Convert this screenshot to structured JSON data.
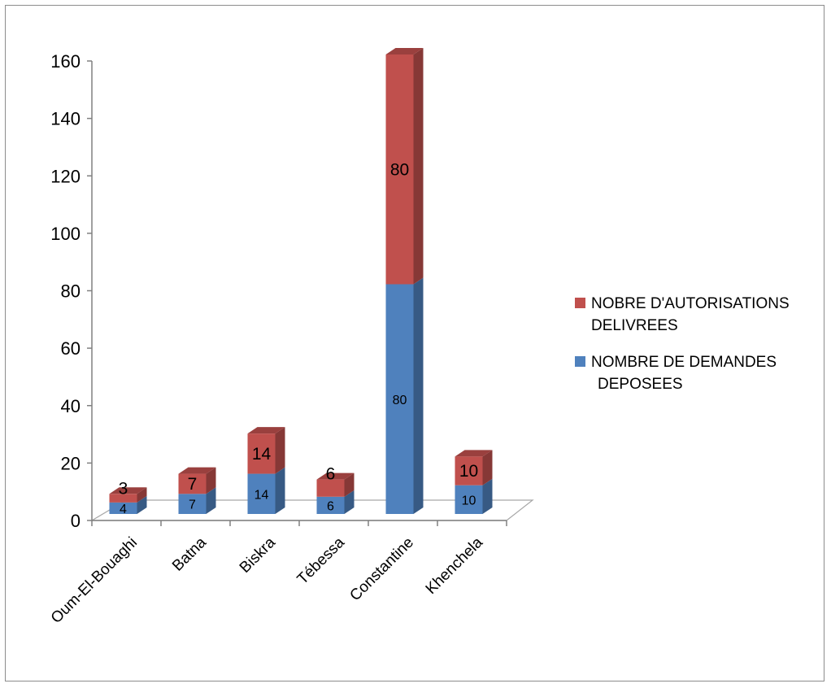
{
  "chart_data": {
    "type": "bar",
    "stacked": true,
    "three_d": true,
    "categories": [
      "Oum-El-Bouaghi",
      "Batna",
      "Biskra",
      "Tébessa",
      "Constantine",
      "Khenchela"
    ],
    "series": [
      {
        "name": "NOMBRE DE DEMANDES DEPOSEES",
        "values": [
          4,
          7,
          14,
          6,
          80,
          10
        ],
        "color": "#4f81bd"
      },
      {
        "name": "NOBRE D'AUTORISATIONS DELIVREES",
        "values": [
          3,
          7,
          14,
          6,
          80,
          10
        ],
        "color": "#c0504d"
      }
    ],
    "yticks": [
      0,
      20,
      40,
      60,
      80,
      100,
      120,
      140,
      160
    ],
    "ylim": [
      0,
      160
    ],
    "legend_position": "right",
    "grid": false
  },
  "legend": {
    "items": [
      {
        "line1": "NOBRE D'AUTORISATIONS",
        "line2": "DELIVREES",
        "color": "#c0504d"
      },
      {
        "line1": "NOMBRE DE DEMANDES",
        "line2": "DEPOSEES",
        "color": "#4f81bd"
      }
    ]
  }
}
